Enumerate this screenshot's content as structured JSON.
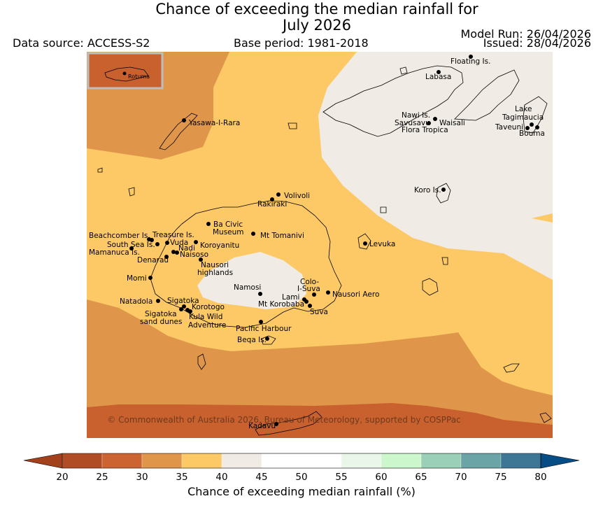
{
  "title_line1": "Chance of exceeding the median rainfall for",
  "title_line2": "July 2026",
  "data_source": "Data source: ACCESS-S2",
  "base_period": "Base period: 1981-2018",
  "model_run": "Model Run: 26/04/2026",
  "issued": "Issued: 28/04/2026",
  "copyright": "© Commonwealth of Australia 2026, Bureau of Meteorology, supported by COSPPac",
  "inset_label": "Rotuma",
  "colorbar": {
    "title": "Chance of exceeding median rainfall (%)",
    "ticks": [
      "20",
      "25",
      "30",
      "35",
      "40",
      "45",
      "50",
      "55",
      "60",
      "65",
      "70",
      "75",
      "80"
    ],
    "colors": [
      "#b04d24",
      "#cc6432",
      "#e0964a",
      "#fdc966",
      "#f0ece5",
      "#ffffff",
      "#ffffff",
      "#ebf6ea",
      "#ccf7cc",
      "#9bd0b8",
      "#6ba4a6",
      "#3d7795",
      "#074d85"
    ]
  },
  "legend_colors": {
    "band_20_25": "#c9612f",
    "band_30_35": "#e0964a",
    "band_35_40": "#fdc966",
    "band_40_45": "#f0ece5"
  },
  "places": [
    {
      "name": "Floating Is."
    },
    {
      "name": "Labasa"
    },
    {
      "name": "Yasawa-I-Rara"
    },
    {
      "name": "Nawi Is."
    },
    {
      "name": "Savusavu"
    },
    {
      "name": "Waisali"
    },
    {
      "name": "Flora Tropica"
    },
    {
      "name": "Lake"
    },
    {
      "name": "Tagimaucia"
    },
    {
      "name": "Taveuni"
    },
    {
      "name": "Bouma"
    },
    {
      "name": "Koro Is."
    },
    {
      "name": "Volivoli"
    },
    {
      "name": "Rakiraki"
    },
    {
      "name": "Ba Civic"
    },
    {
      "name": "Museum"
    },
    {
      "name": "Mt Tomanivi"
    },
    {
      "name": "Beachcomber Is."
    },
    {
      "name": "Treasure Is."
    },
    {
      "name": "South Sea Is."
    },
    {
      "name": "Vuda"
    },
    {
      "name": "Koroyanitu"
    },
    {
      "name": "Mamanuca Is."
    },
    {
      "name": "Nadi"
    },
    {
      "name": "Naisoso"
    },
    {
      "name": "Denarau"
    },
    {
      "name": "Levuka"
    },
    {
      "name": "Nausori"
    },
    {
      "name": "highlands"
    },
    {
      "name": "Momi"
    },
    {
      "name": "Namosi"
    },
    {
      "name": "Colo-"
    },
    {
      "name": "I-Suva"
    },
    {
      "name": "Lami"
    },
    {
      "name": "Nausori Aero"
    },
    {
      "name": "Mt Korobaba"
    },
    {
      "name": "Natadola"
    },
    {
      "name": "Sigatoka"
    },
    {
      "name": "Korotogo"
    },
    {
      "name": "Suva"
    },
    {
      "name": "Sigatoka"
    },
    {
      "name": "sand dunes"
    },
    {
      "name": "Kula Wild"
    },
    {
      "name": "Adventure"
    },
    {
      "name": "Pacific Harbour"
    },
    {
      "name": "Beqa Is."
    },
    {
      "name": "Kadavu"
    }
  ]
}
